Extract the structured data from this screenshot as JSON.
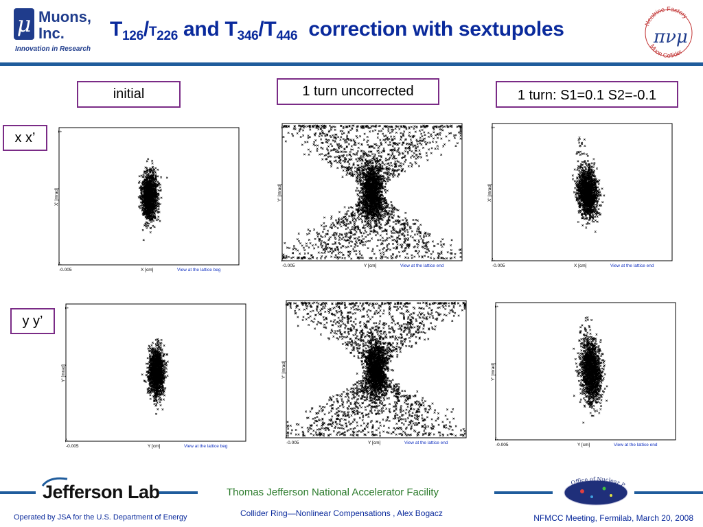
{
  "header": {
    "org_line1": "Muons,",
    "org_line2": "Inc.",
    "tagline": "Innovation in Research",
    "mu_symbol": "μ",
    "title_parts": {
      "t1": "T",
      "s1": "126",
      "slash1": "/",
      "t2": "T",
      "s2": "226",
      "mid": " and ",
      "t3": "T",
      "s3": "346",
      "slash2": "/",
      "t4": "T",
      "s4": "446",
      "tail": "  correction with sextupoles"
    },
    "right_logo": {
      "top": "Neutrino Factory",
      "bottom": "Muon Collider",
      "symbol": "πνμ"
    }
  },
  "columns": [
    {
      "label": "initial"
    },
    {
      "label": "1 turn uncorrected"
    },
    {
      "label": "1 turn: S1=0.1 S2=-0.1"
    }
  ],
  "rows": [
    {
      "label": "x x’"
    },
    {
      "label": "y y’"
    }
  ],
  "plots": [
    {
      "xlabel": "X [cm]",
      "ylabel": "X' [mrad]",
      "xmin": "-0.005",
      "ytop": "1",
      "ybot": "-1",
      "caption": "View at the lattice beg"
    },
    {
      "xlabel": "Y [cm]",
      "ylabel": "Y' [mrad]",
      "xmin": "-0.005",
      "ytop": "1",
      "ybot": "-1",
      "caption": "View at the lattice end"
    },
    {
      "xlabel": "X [cm]",
      "ylabel": "X' [mrad]",
      "xmin": "-0.005",
      "ytop": "1",
      "ybot": "-1",
      "caption": "View at the lattice end"
    },
    {
      "xlabel": "Y [cm]",
      "ylabel": "Y' [mrad]",
      "xmin": "-0.005",
      "ytop": "1",
      "ybot": "-1",
      "caption": "View at the lattice beg"
    },
    {
      "xlabel": "Y [cm]",
      "ylabel": "Y' [mrad]",
      "xmin": "-0.005",
      "ytop": "1",
      "ybot": "-1",
      "caption": "View at the lattice end"
    },
    {
      "xlabel": "Y [cm]",
      "ylabel": "Y' [mrad]",
      "xmin": "-0.005",
      "ytop": "1",
      "ybot": "-1",
      "caption": "View at the lattice end"
    }
  ],
  "footer": {
    "lab_logo": "Jefferson Lab",
    "facility": "Thomas Jefferson National Accelerator Facility",
    "talk": "Collider Ring—Nonlinear Compensations , Alex Bogacz",
    "operated": "Operated by JSA for the U.S. Department of Energy",
    "meeting": "NFMCC Meeting, Fermilab, March 20, 2008",
    "doe_logo_text": "Office of Nuclear Physics"
  },
  "colors": {
    "title_blue": "#0a2a9c",
    "rule_blue": "#1f5c9c",
    "label_border": "#7a2b86",
    "facility_green": "#2a7a2a"
  }
}
